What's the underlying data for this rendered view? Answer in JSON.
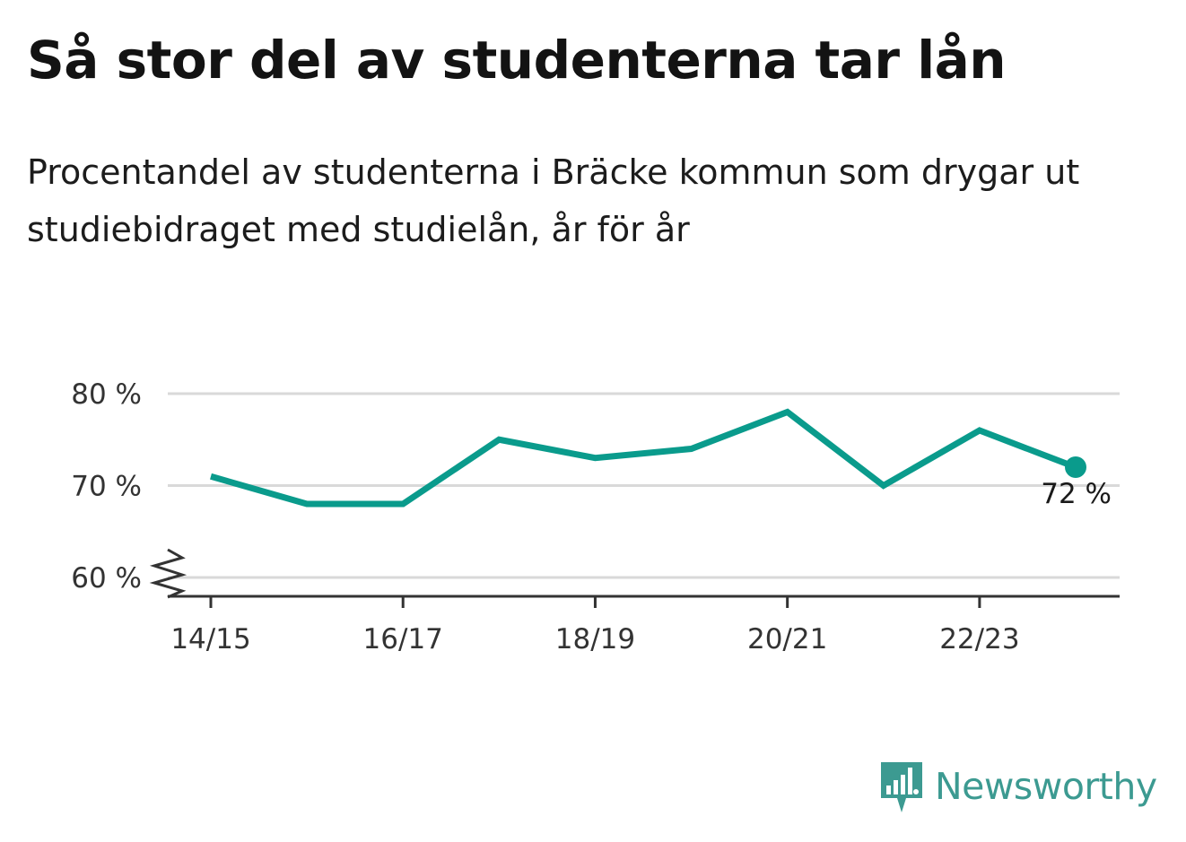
{
  "title": "Så stor del av studenterna tar lån",
  "subtitle": "Procentandel av studenterna i Bräcke kommun som drygar ut studiebidraget med studielån, år för år",
  "brand": {
    "name": "Newsworthy",
    "icon": "bar-chart-speech-bubble-icon",
    "color": "#3c9a91"
  },
  "chart_data": {
    "type": "line",
    "x": [
      "14/15",
      "15/16",
      "16/17",
      "17/18",
      "18/19",
      "19/20",
      "20/21",
      "21/22",
      "22/23",
      "23/24"
    ],
    "x_tick_labels": [
      "14/15",
      "16/17",
      "18/19",
      "20/21",
      "22/23"
    ],
    "series": [
      {
        "values": [
          71,
          68,
          68,
          75,
          73,
          74,
          78,
          70,
          76,
          72
        ],
        "color": "#0a9b8c"
      }
    ],
    "y_ticks": [
      60,
      70,
      80
    ],
    "y_tick_labels": [
      "60 %",
      "70 %",
      "80 %"
    ],
    "ylim": [
      60,
      80
    ],
    "y_axis_break": true,
    "grid": true,
    "end_label": "72 %",
    "title": "Så stor del av studenterna tar lån",
    "xlabel": "",
    "ylabel": ""
  }
}
